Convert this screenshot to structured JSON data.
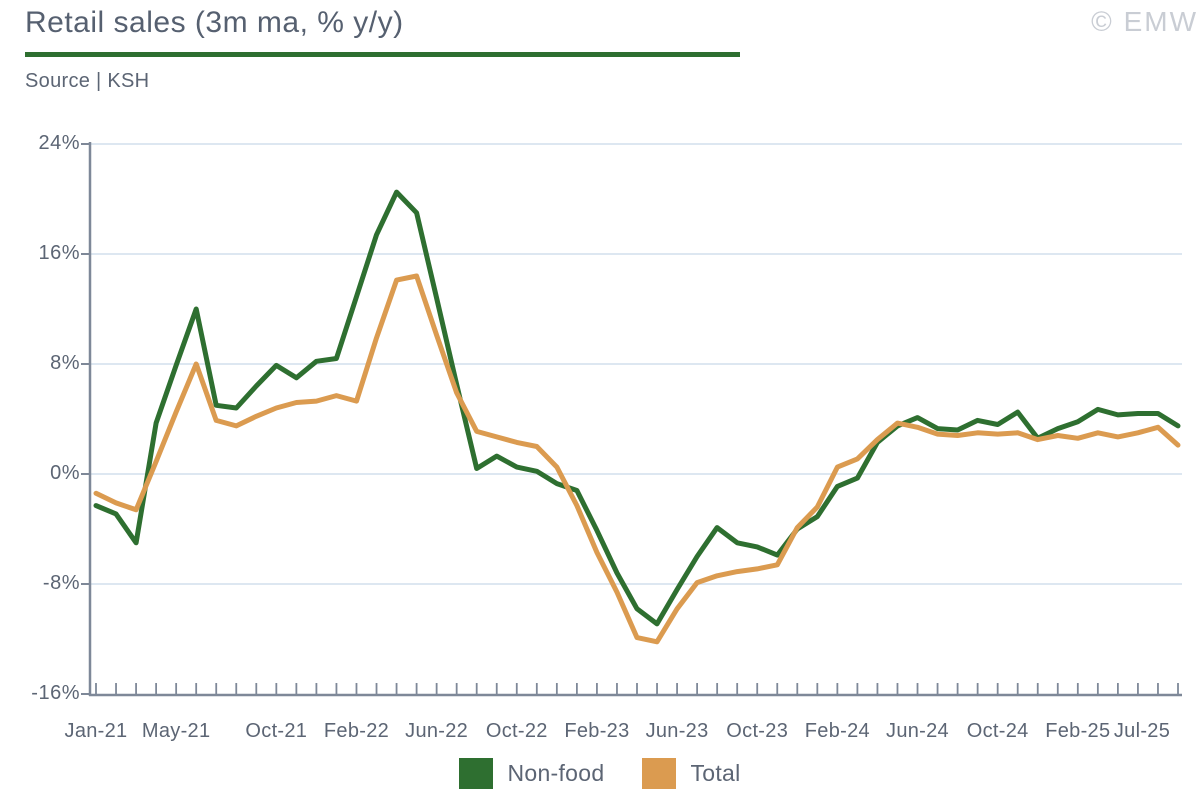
{
  "header": {
    "title": "Retail sales (3m ma, % y/y)",
    "source": "Source | KSH",
    "watermark": "© EMW"
  },
  "colors": {
    "accent_green": "#2e6f30",
    "accent_orange": "#db9b50",
    "axis": "#7e8898",
    "gridline": "#dde7f1",
    "text": "#5c6574",
    "watermark": "#c9cdd4"
  },
  "legend": [
    {
      "label": "Non-food",
      "color": "#2e6f30"
    },
    {
      "label": "Total",
      "color": "#db9b50"
    }
  ],
  "chart_data": {
    "type": "line",
    "title": "Retail sales (3m ma, % y/y)",
    "xlabel": "",
    "ylabel": "",
    "ylim": [
      -16,
      24
    ],
    "grid": "horizontal",
    "legend_position": "bottom",
    "yticks": [
      {
        "label": "24%",
        "value": 24
      },
      {
        "label": "16%",
        "value": 16
      },
      {
        "label": "8%",
        "value": 8
      },
      {
        "label": "0%",
        "value": 0
      },
      {
        "label": "-8%",
        "value": -8
      },
      {
        "label": "-16%",
        "value": -16
      }
    ],
    "x_labels_shown": [
      "Jan-21",
      "May-21",
      "Oct-21",
      "Feb-22",
      "Jun-22",
      "Oct-22",
      "Feb-23",
      "Jun-23",
      "Oct-23",
      "Feb-24",
      "Jun-24",
      "Oct-24",
      "Feb-25",
      "Jul-25"
    ],
    "x": [
      "Jan-21",
      "Feb-21",
      "Mar-21",
      "Apr-21",
      "May-21",
      "Jun-21",
      "Jul-21",
      "Aug-21",
      "Sep-21",
      "Oct-21",
      "Nov-21",
      "Dec-21",
      "Jan-22",
      "Feb-22",
      "Mar-22",
      "Apr-22",
      "May-22",
      "Jun-22",
      "Jul-22",
      "Aug-22",
      "Sep-22",
      "Oct-22",
      "Nov-22",
      "Dec-22",
      "Jan-23",
      "Feb-23",
      "Mar-23",
      "Apr-23",
      "May-23",
      "Jun-23",
      "Jul-23",
      "Aug-23",
      "Sep-23",
      "Oct-23",
      "Nov-23",
      "Dec-23",
      "Jan-24",
      "Feb-24",
      "Mar-24",
      "Apr-24",
      "May-24",
      "Jun-24",
      "Jul-24",
      "Aug-24",
      "Sep-24",
      "Oct-24",
      "Nov-24",
      "Dec-24",
      "Jan-25",
      "Feb-25",
      "Mar-25",
      "Apr-25",
      "May-25",
      "Jun-25",
      "Jul-25"
    ],
    "series": [
      {
        "name": "Non-food",
        "color": "#2e6f30",
        "values": [
          -2.3,
          -2.9,
          -5.0,
          3.7,
          7.9,
          12.0,
          5.0,
          4.8,
          6.4,
          7.9,
          7.0,
          8.2,
          8.4,
          12.9,
          17.4,
          20.5,
          19.0,
          12.8,
          6.5,
          0.4,
          1.3,
          0.5,
          0.2,
          -0.7,
          -1.2,
          -4.1,
          -7.2,
          -9.8,
          -10.9,
          -8.4,
          -6.0,
          -3.9,
          -5.0,
          -5.3,
          -5.9,
          -4.0,
          -3.1,
          -0.9,
          -0.3,
          2.3,
          3.5,
          4.1,
          3.3,
          3.2,
          3.9,
          3.6,
          4.5,
          2.6,
          3.3,
          3.8,
          4.7,
          4.3,
          4.4,
          4.4,
          3.5
        ]
      },
      {
        "name": "Total",
        "color": "#db9b50",
        "values": [
          -1.4,
          -2.1,
          -2.6,
          0.9,
          4.5,
          8.0,
          3.9,
          3.5,
          4.2,
          4.8,
          5.2,
          5.3,
          5.7,
          5.3,
          9.9,
          14.1,
          14.4,
          10.1,
          5.9,
          3.1,
          2.7,
          2.3,
          2.0,
          0.5,
          -2.3,
          -5.7,
          -8.6,
          -11.9,
          -12.2,
          -9.8,
          -7.9,
          -7.4,
          -7.1,
          -6.9,
          -6.6,
          -3.9,
          -2.4,
          0.5,
          1.1,
          2.5,
          3.7,
          3.4,
          2.9,
          2.8,
          3.0,
          2.9,
          3.0,
          2.5,
          2.8,
          2.6,
          3.0,
          2.7,
          3.0,
          3.4,
          2.1
        ]
      }
    ]
  }
}
